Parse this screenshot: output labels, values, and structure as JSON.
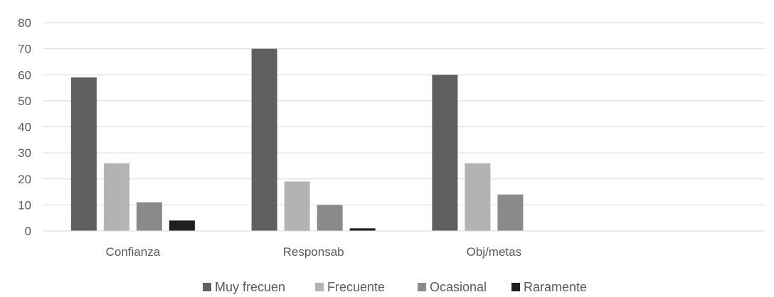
{
  "chart_data": {
    "type": "bar",
    "title": "",
    "xlabel": "",
    "ylabel": "",
    "categories": [
      "Confianza",
      "Responsab",
      "Obj/metas",
      ""
    ],
    "series": [
      {
        "name": "Muy frecuen",
        "color": "#5f5f5f",
        "values": [
          59,
          70,
          60,
          null
        ]
      },
      {
        "name": "Frecuente",
        "color": "#b3b3b3",
        "values": [
          26,
          19,
          26,
          null
        ]
      },
      {
        "name": "Ocasional",
        "color": "#8a8a8a",
        "values": [
          11,
          10,
          14,
          null
        ]
      },
      {
        "name": "Raramente",
        "color": "#1f1f1f",
        "values": [
          4,
          1,
          null,
          null
        ]
      }
    ],
    "ylim": [
      0,
      80
    ],
    "yticks": [
      0,
      10,
      20,
      30,
      40,
      50,
      60,
      70,
      80
    ],
    "grid": true,
    "legend_position": "bottom"
  }
}
